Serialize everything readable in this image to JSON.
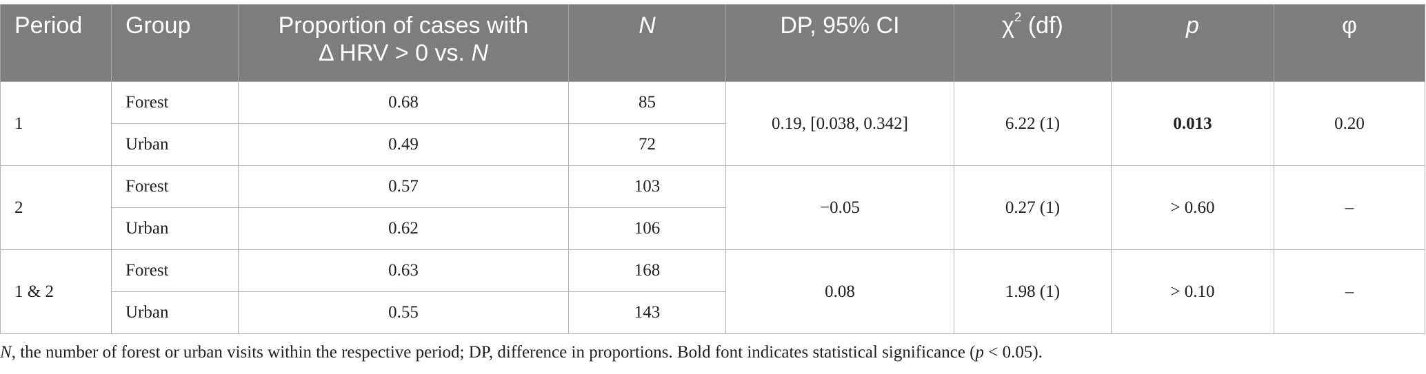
{
  "table": {
    "headers": {
      "period": "Period",
      "group": "Group",
      "proportion_line1": "Proportion of cases with",
      "proportion_line2_prefix": "Δ HRV > 0 vs. ",
      "proportion_line2_italic": "N",
      "n": "N",
      "dp": "DP, 95% CI",
      "chi_symbol": "χ",
      "chi_sup": "2",
      "chi_suffix": " (df)",
      "p": "p",
      "phi": "φ"
    },
    "rows": [
      {
        "period": "1",
        "dp": "0.19, [0.038, 0.342]",
        "chi2": "6.22 (1)",
        "p": "0.013",
        "phi": "0.20",
        "groups": [
          {
            "group": "Forest",
            "proportion": "0.68",
            "n": "85"
          },
          {
            "group": "Urban",
            "proportion": "0.49",
            "n": "72"
          }
        ]
      },
      {
        "period": "2",
        "dp": "−0.05",
        "chi2": "0.27 (1)",
        "p": "> 0.60",
        "phi": "–",
        "groups": [
          {
            "group": "Forest",
            "proportion": "0.57",
            "n": "103"
          },
          {
            "group": "Urban",
            "proportion": "0.62",
            "n": "106"
          }
        ]
      },
      {
        "period": "1 & 2",
        "dp": "0.08",
        "chi2": "1.98 (1)",
        "p": "> 0.10",
        "phi": "–",
        "groups": [
          {
            "group": "Forest",
            "proportion": "0.63",
            "n": "168"
          },
          {
            "group": "Urban",
            "proportion": "0.55",
            "n": "143"
          }
        ]
      }
    ]
  },
  "footnote": {
    "n_italic": "N",
    "part1": ", the number of forest or urban visits within the respective period; DP, difference in proportions. Bold font indicates statistical significance (",
    "p_italic": "p",
    "part2": " < 0.05)."
  }
}
